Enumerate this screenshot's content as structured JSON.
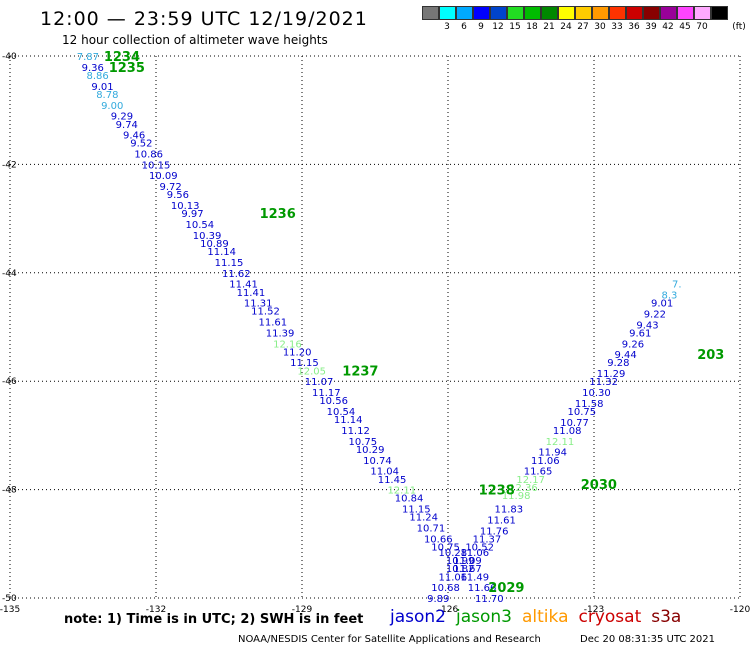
{
  "header": {
    "title": "12:00 — 23:59 UTC 12/19/2021",
    "subtitle": "12 hour collection of altimeter wave heights"
  },
  "colorbar": {
    "colors": [
      "#777777",
      "#00ffff",
      "#00aaff",
      "#0000ff",
      "#0044cc",
      "#22dd22",
      "#00bb00",
      "#008800",
      "#ffff00",
      "#ffcc00",
      "#ff9900",
      "#ff3300",
      "#cc0000",
      "#880000",
      "#990099",
      "#ff44ff",
      "#ffaaff",
      "#000000"
    ],
    "labels": [
      "3",
      "6",
      "9",
      "12",
      "15",
      "18",
      "21",
      "24",
      "27",
      "30",
      "33",
      "36",
      "39",
      "42",
      "45",
      "70"
    ],
    "unit": "(ft)"
  },
  "footer": {
    "note": "note:  1) Time is in UTC;  2) SWH is in feet",
    "satellites": [
      {
        "name": "jason2",
        "color": "#0000cc"
      },
      {
        "name": "jason3",
        "color": "#009900"
      },
      {
        "name": "altika",
        "color": "#ff9900"
      },
      {
        "name": "cryosat",
        "color": "#cc0000"
      },
      {
        "name": "s3a",
        "color": "#880000"
      }
    ],
    "credit": "NOAA/NESDIS Center for Satellite Applications and Research",
    "timestamp": "Dec 20 08:31:35 UTC 2021"
  },
  "chart_data": {
    "type": "scatter",
    "title": "12:00 — 23:59 UTC 12/19/2021",
    "subtitle": "12 hour collection of altimeter wave heights",
    "xlabel": "",
    "ylabel": "",
    "xlim": [
      -135,
      -120
    ],
    "ylim": [
      -50,
      -40
    ],
    "x_ticks": [
      "-135",
      "-132",
      "-129",
      "-126",
      "-123",
      "-120"
    ],
    "y_ticks": [
      "-40",
      "-42",
      "-44",
      "-46",
      "-48",
      "-50"
    ],
    "grid": true,
    "time_labels": [
      {
        "text": "1234",
        "lon": -132.7,
        "lat": -40.0,
        "color": "#009900"
      },
      {
        "text": "1235",
        "lon": -132.6,
        "lat": -40.2,
        "color": "#009900"
      },
      {
        "text": "1236",
        "lon": -129.5,
        "lat": -42.9,
        "color": "#009900"
      },
      {
        "text": "1237",
        "lon": -127.8,
        "lat": -45.8,
        "color": "#009900"
      },
      {
        "text": "1238",
        "lon": -125.0,
        "lat": -48.0,
        "color": "#009900"
      },
      {
        "text": "2029",
        "lon": -124.8,
        "lat": -49.8,
        "color": "#009900"
      },
      {
        "text": "2030",
        "lon": -122.9,
        "lat": -47.9,
        "color": "#009900"
      },
      {
        "text": "203",
        "lon": -120.6,
        "lat": -45.5,
        "color": "#009900"
      }
    ],
    "series": [
      {
        "name": "track-descending",
        "points": [
          {
            "lon": -133.4,
            "lat": -40.0,
            "swh": "7.87",
            "color": "#33aadd"
          },
          {
            "lon": -133.3,
            "lat": -40.2,
            "swh": "9.36",
            "color": "#0000cc"
          },
          {
            "lon": -133.2,
            "lat": -40.35,
            "swh": "8.86",
            "color": "#33aadd"
          },
          {
            "lon": -133.1,
            "lat": -40.55,
            "swh": "9.01",
            "color": "#0000cc"
          },
          {
            "lon": -133.0,
            "lat": -40.7,
            "swh": "8.78",
            "color": "#33aadd"
          },
          {
            "lon": -132.9,
            "lat": -40.9,
            "swh": "9.00",
            "color": "#33aadd"
          },
          {
            "lon": -132.7,
            "lat": -41.1,
            "swh": "9.29",
            "color": "#0000cc"
          },
          {
            "lon": -132.6,
            "lat": -41.25,
            "swh": "9.74",
            "color": "#0000cc"
          },
          {
            "lon": -132.45,
            "lat": -41.45,
            "swh": "9.46",
            "color": "#0000cc"
          },
          {
            "lon": -132.3,
            "lat": -41.6,
            "swh": "9.52",
            "color": "#0000cc"
          },
          {
            "lon": -132.15,
            "lat": -41.8,
            "swh": "10.86",
            "color": "#0000cc"
          },
          {
            "lon": -132.0,
            "lat": -42.0,
            "swh": "10.15",
            "color": "#0000cc"
          },
          {
            "lon": -131.85,
            "lat": -42.2,
            "swh": "10.09",
            "color": "#0000cc"
          },
          {
            "lon": -131.7,
            "lat": -42.4,
            "swh": "9.72",
            "color": "#0000cc"
          },
          {
            "lon": -131.55,
            "lat": -42.55,
            "swh": "9.56",
            "color": "#0000cc"
          },
          {
            "lon": -131.4,
            "lat": -42.75,
            "swh": "10.13",
            "color": "#0000cc"
          },
          {
            "lon": -131.25,
            "lat": -42.9,
            "swh": "9.97",
            "color": "#0000cc"
          },
          {
            "lon": -131.1,
            "lat": -43.1,
            "swh": "10.54",
            "color": "#0000cc"
          },
          {
            "lon": -130.95,
            "lat": -43.3,
            "swh": "10.39",
            "color": "#0000cc"
          },
          {
            "lon": -130.8,
            "lat": -43.45,
            "swh": "10.89",
            "color": "#0000cc"
          },
          {
            "lon": -130.65,
            "lat": -43.6,
            "swh": "11.14",
            "color": "#0000cc"
          },
          {
            "lon": -130.5,
            "lat": -43.8,
            "swh": "11.15",
            "color": "#0000cc"
          },
          {
            "lon": -130.35,
            "lat": -44.0,
            "swh": "11.62",
            "color": "#0000cc"
          },
          {
            "lon": -130.2,
            "lat": -44.2,
            "swh": "11.41",
            "color": "#0000cc"
          },
          {
            "lon": -130.05,
            "lat": -44.35,
            "swh": "11.41",
            "color": "#0000cc"
          },
          {
            "lon": -129.9,
            "lat": -44.55,
            "swh": "11.31",
            "color": "#0000cc"
          },
          {
            "lon": -129.75,
            "lat": -44.7,
            "swh": "11.52",
            "color": "#0000cc"
          },
          {
            "lon": -129.6,
            "lat": -44.9,
            "swh": "11.61",
            "color": "#0000cc"
          },
          {
            "lon": -129.45,
            "lat": -45.1,
            "swh": "11.39",
            "color": "#0000cc"
          },
          {
            "lon": -129.3,
            "lat": -45.3,
            "swh": "12.16",
            "color": "#88ee88"
          },
          {
            "lon": -129.1,
            "lat": -45.45,
            "swh": "11.20",
            "color": "#0000cc"
          },
          {
            "lon": -128.95,
            "lat": -45.65,
            "swh": "11.15",
            "color": "#0000cc"
          },
          {
            "lon": -128.8,
            "lat": -45.8,
            "swh": "12.05",
            "color": "#88ee88"
          },
          {
            "lon": -128.65,
            "lat": -46.0,
            "swh": "11.07",
            "color": "#0000cc"
          },
          {
            "lon": -128.5,
            "lat": -46.2,
            "swh": "11.17",
            "color": "#0000cc"
          },
          {
            "lon": -128.35,
            "lat": -46.35,
            "swh": "10.56",
            "color": "#0000cc"
          },
          {
            "lon": -128.2,
            "lat": -46.55,
            "swh": "10.54",
            "color": "#0000cc"
          },
          {
            "lon": -128.05,
            "lat": -46.7,
            "swh": "11.14",
            "color": "#0000cc"
          },
          {
            "lon": -127.9,
            "lat": -46.9,
            "swh": "11.12",
            "color": "#0000cc"
          },
          {
            "lon": -127.75,
            "lat": -47.1,
            "swh": "10.75",
            "color": "#0000cc"
          },
          {
            "lon": -127.6,
            "lat": -47.25,
            "swh": "10.29",
            "color": "#0000cc"
          },
          {
            "lon": -127.45,
            "lat": -47.45,
            "swh": "10.74",
            "color": "#0000cc"
          },
          {
            "lon": -127.3,
            "lat": -47.65,
            "swh": "11.04",
            "color": "#0000cc"
          },
          {
            "lon": -127.15,
            "lat": -47.8,
            "swh": "11.45",
            "color": "#0000cc"
          },
          {
            "lon": -126.95,
            "lat": -48.0,
            "swh": "12.11",
            "color": "#88ee88"
          },
          {
            "lon": -126.8,
            "lat": -48.15,
            "swh": "10.84",
            "color": "#0000cc"
          },
          {
            "lon": -126.65,
            "lat": -48.35,
            "swh": "11.15",
            "color": "#0000cc"
          },
          {
            "lon": -126.5,
            "lat": -48.5,
            "swh": "11.24",
            "color": "#0000cc"
          },
          {
            "lon": -126.35,
            "lat": -48.7,
            "swh": "10.71",
            "color": "#0000cc"
          },
          {
            "lon": -126.2,
            "lat": -48.9,
            "swh": "10.66",
            "color": "#0000cc"
          },
          {
            "lon": -126.05,
            "lat": -49.05,
            "swh": "10.75",
            "color": "#0000cc"
          },
          {
            "lon": -125.9,
            "lat": -49.15,
            "swh": "10.28",
            "color": "#0000cc"
          },
          {
            "lon": -125.75,
            "lat": -49.3,
            "swh": "10.99",
            "color": "#0000cc"
          },
          {
            "lon": -125.6,
            "lat": -49.45,
            "swh": "11.67",
            "color": "#0000cc"
          },
          {
            "lon": -125.45,
            "lat": -49.6,
            "swh": "11.49",
            "color": "#0000cc"
          },
          {
            "lon": -125.3,
            "lat": -49.8,
            "swh": "11.66",
            "color": "#0000cc"
          },
          {
            "lon": -125.15,
            "lat": -50.0,
            "swh": "11.70",
            "color": "#0000cc"
          }
        ]
      },
      {
        "name": "track-ascending",
        "points": [
          {
            "lon": -126.2,
            "lat": -50.0,
            "swh": "9.89",
            "color": "#0000cc"
          },
          {
            "lon": -126.05,
            "lat": -49.8,
            "swh": "10.68",
            "color": "#0000cc"
          },
          {
            "lon": -125.9,
            "lat": -49.6,
            "swh": "11.06",
            "color": "#0000cc"
          },
          {
            "lon": -125.75,
            "lat": -49.45,
            "swh": "10.82",
            "color": "#0000cc"
          },
          {
            "lon": -125.6,
            "lat": -49.3,
            "swh": "11.09",
            "color": "#0000cc"
          },
          {
            "lon": -125.45,
            "lat": -49.15,
            "swh": "11.06",
            "color": "#0000cc"
          },
          {
            "lon": -125.35,
            "lat": -49.05,
            "swh": "10.52",
            "color": "#0000cc"
          },
          {
            "lon": -125.2,
            "lat": -48.9,
            "swh": "11.37",
            "color": "#0000cc"
          },
          {
            "lon": -125.05,
            "lat": -48.75,
            "swh": "11.76",
            "color": "#0000cc"
          },
          {
            "lon": -124.9,
            "lat": -48.55,
            "swh": "11.61",
            "color": "#0000cc"
          },
          {
            "lon": -124.75,
            "lat": -48.35,
            "swh": "11.83",
            "color": "#0000cc"
          },
          {
            "lon": -124.6,
            "lat": -48.1,
            "swh": "11.98",
            "color": "#88ee88"
          },
          {
            "lon": -124.45,
            "lat": -47.95,
            "swh": "12.36",
            "color": "#88ee88"
          },
          {
            "lon": -124.3,
            "lat": -47.8,
            "swh": "12.17",
            "color": "#88ee88"
          },
          {
            "lon": -124.15,
            "lat": -47.65,
            "swh": "11.65",
            "color": "#0000cc"
          },
          {
            "lon": -124.0,
            "lat": -47.45,
            "swh": "11.06",
            "color": "#0000cc"
          },
          {
            "lon": -123.85,
            "lat": -47.3,
            "swh": "11.94",
            "color": "#0000cc"
          },
          {
            "lon": -123.7,
            "lat": -47.1,
            "swh": "12.11",
            "color": "#88ee88"
          },
          {
            "lon": -123.55,
            "lat": -46.9,
            "swh": "11.08",
            "color": "#0000cc"
          },
          {
            "lon": -123.4,
            "lat": -46.75,
            "swh": "10.77",
            "color": "#0000cc"
          },
          {
            "lon": -123.25,
            "lat": -46.55,
            "swh": "10.75",
            "color": "#0000cc"
          },
          {
            "lon": -123.1,
            "lat": -46.4,
            "swh": "11.58",
            "color": "#0000cc"
          },
          {
            "lon": -122.95,
            "lat": -46.2,
            "swh": "10.30",
            "color": "#0000cc"
          },
          {
            "lon": -122.8,
            "lat": -46.0,
            "swh": "11.32",
            "color": "#0000cc"
          },
          {
            "lon": -122.65,
            "lat": -45.85,
            "swh": "11.29",
            "color": "#0000cc"
          },
          {
            "lon": -122.5,
            "lat": -45.65,
            "swh": "9.28",
            "color": "#0000cc"
          },
          {
            "lon": -122.35,
            "lat": -45.5,
            "swh": "9.44",
            "color": "#0000cc"
          },
          {
            "lon": -122.2,
            "lat": -45.3,
            "swh": "9.26",
            "color": "#0000cc"
          },
          {
            "lon": -122.05,
            "lat": -45.1,
            "swh": "9.61",
            "color": "#0000cc"
          },
          {
            "lon": -121.9,
            "lat": -44.95,
            "swh": "9.43",
            "color": "#0000cc"
          },
          {
            "lon": -121.75,
            "lat": -44.75,
            "swh": "9.22",
            "color": "#0000cc"
          },
          {
            "lon": -121.6,
            "lat": -44.55,
            "swh": "9.01",
            "color": "#0000cc"
          },
          {
            "lon": -121.45,
            "lat": -44.4,
            "swh": "8.3",
            "color": "#33aadd"
          },
          {
            "lon": -121.3,
            "lat": -44.2,
            "swh": "7.",
            "color": "#33aadd"
          }
        ]
      }
    ]
  }
}
